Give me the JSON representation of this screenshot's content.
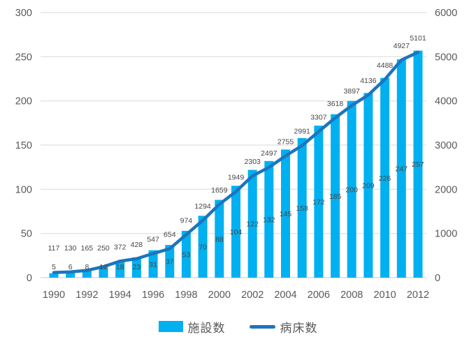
{
  "chart_data": {
    "type": "combo-bar-line",
    "title": "",
    "categories": [
      1990,
      1991,
      1992,
      1993,
      1994,
      1995,
      1996,
      1997,
      1998,
      1999,
      2000,
      2001,
      2002,
      2003,
      2004,
      2005,
      2006,
      2007,
      2008,
      2009,
      2010,
      2011,
      2012
    ],
    "x_tick_labels": [
      "1990",
      "1992",
      "1994",
      "1996",
      "1998",
      "2000",
      "2002",
      "2004",
      "2006",
      "2008",
      "2010",
      "2012"
    ],
    "series": [
      {
        "name": "施設数",
        "type": "bar",
        "axis": "left",
        "color": "#00B0F0",
        "values": [
          5,
          6,
          8,
          12,
          18,
          23,
          31,
          37,
          53,
          70,
          88,
          104,
          122,
          132,
          145,
          158,
          172,
          185,
          200,
          209,
          226,
          247,
          257
        ]
      },
      {
        "name": "病床数",
        "type": "line",
        "axis": "right",
        "color": "#1C75BC",
        "values": [
          117,
          130,
          165,
          250,
          372,
          428,
          547,
          654,
          974,
          1294,
          1659,
          1949,
          2303,
          2497,
          2755,
          2991,
          3307,
          3618,
          3897,
          4136,
          4488,
          4927,
          5101
        ]
      }
    ],
    "left_axis": {
      "min": 0,
      "max": 300,
      "step": 50,
      "tick_labels": [
        "0",
        "50",
        "100",
        "150",
        "200",
        "250",
        "300"
      ]
    },
    "right_axis": {
      "min": 0,
      "max": 6000,
      "step": 1000,
      "tick_labels": [
        "0",
        "1000",
        "2000",
        "3000",
        "4000",
        "5000",
        "6000"
      ]
    },
    "grid": true,
    "data_labels": true,
    "legend_position": "bottom",
    "colors": {
      "grid": "#D9D9D9",
      "axis_line": "#C9C9C9",
      "axis_text": "#595959",
      "data_label_text": "#464646",
      "background": "#FFFFFF"
    }
  }
}
